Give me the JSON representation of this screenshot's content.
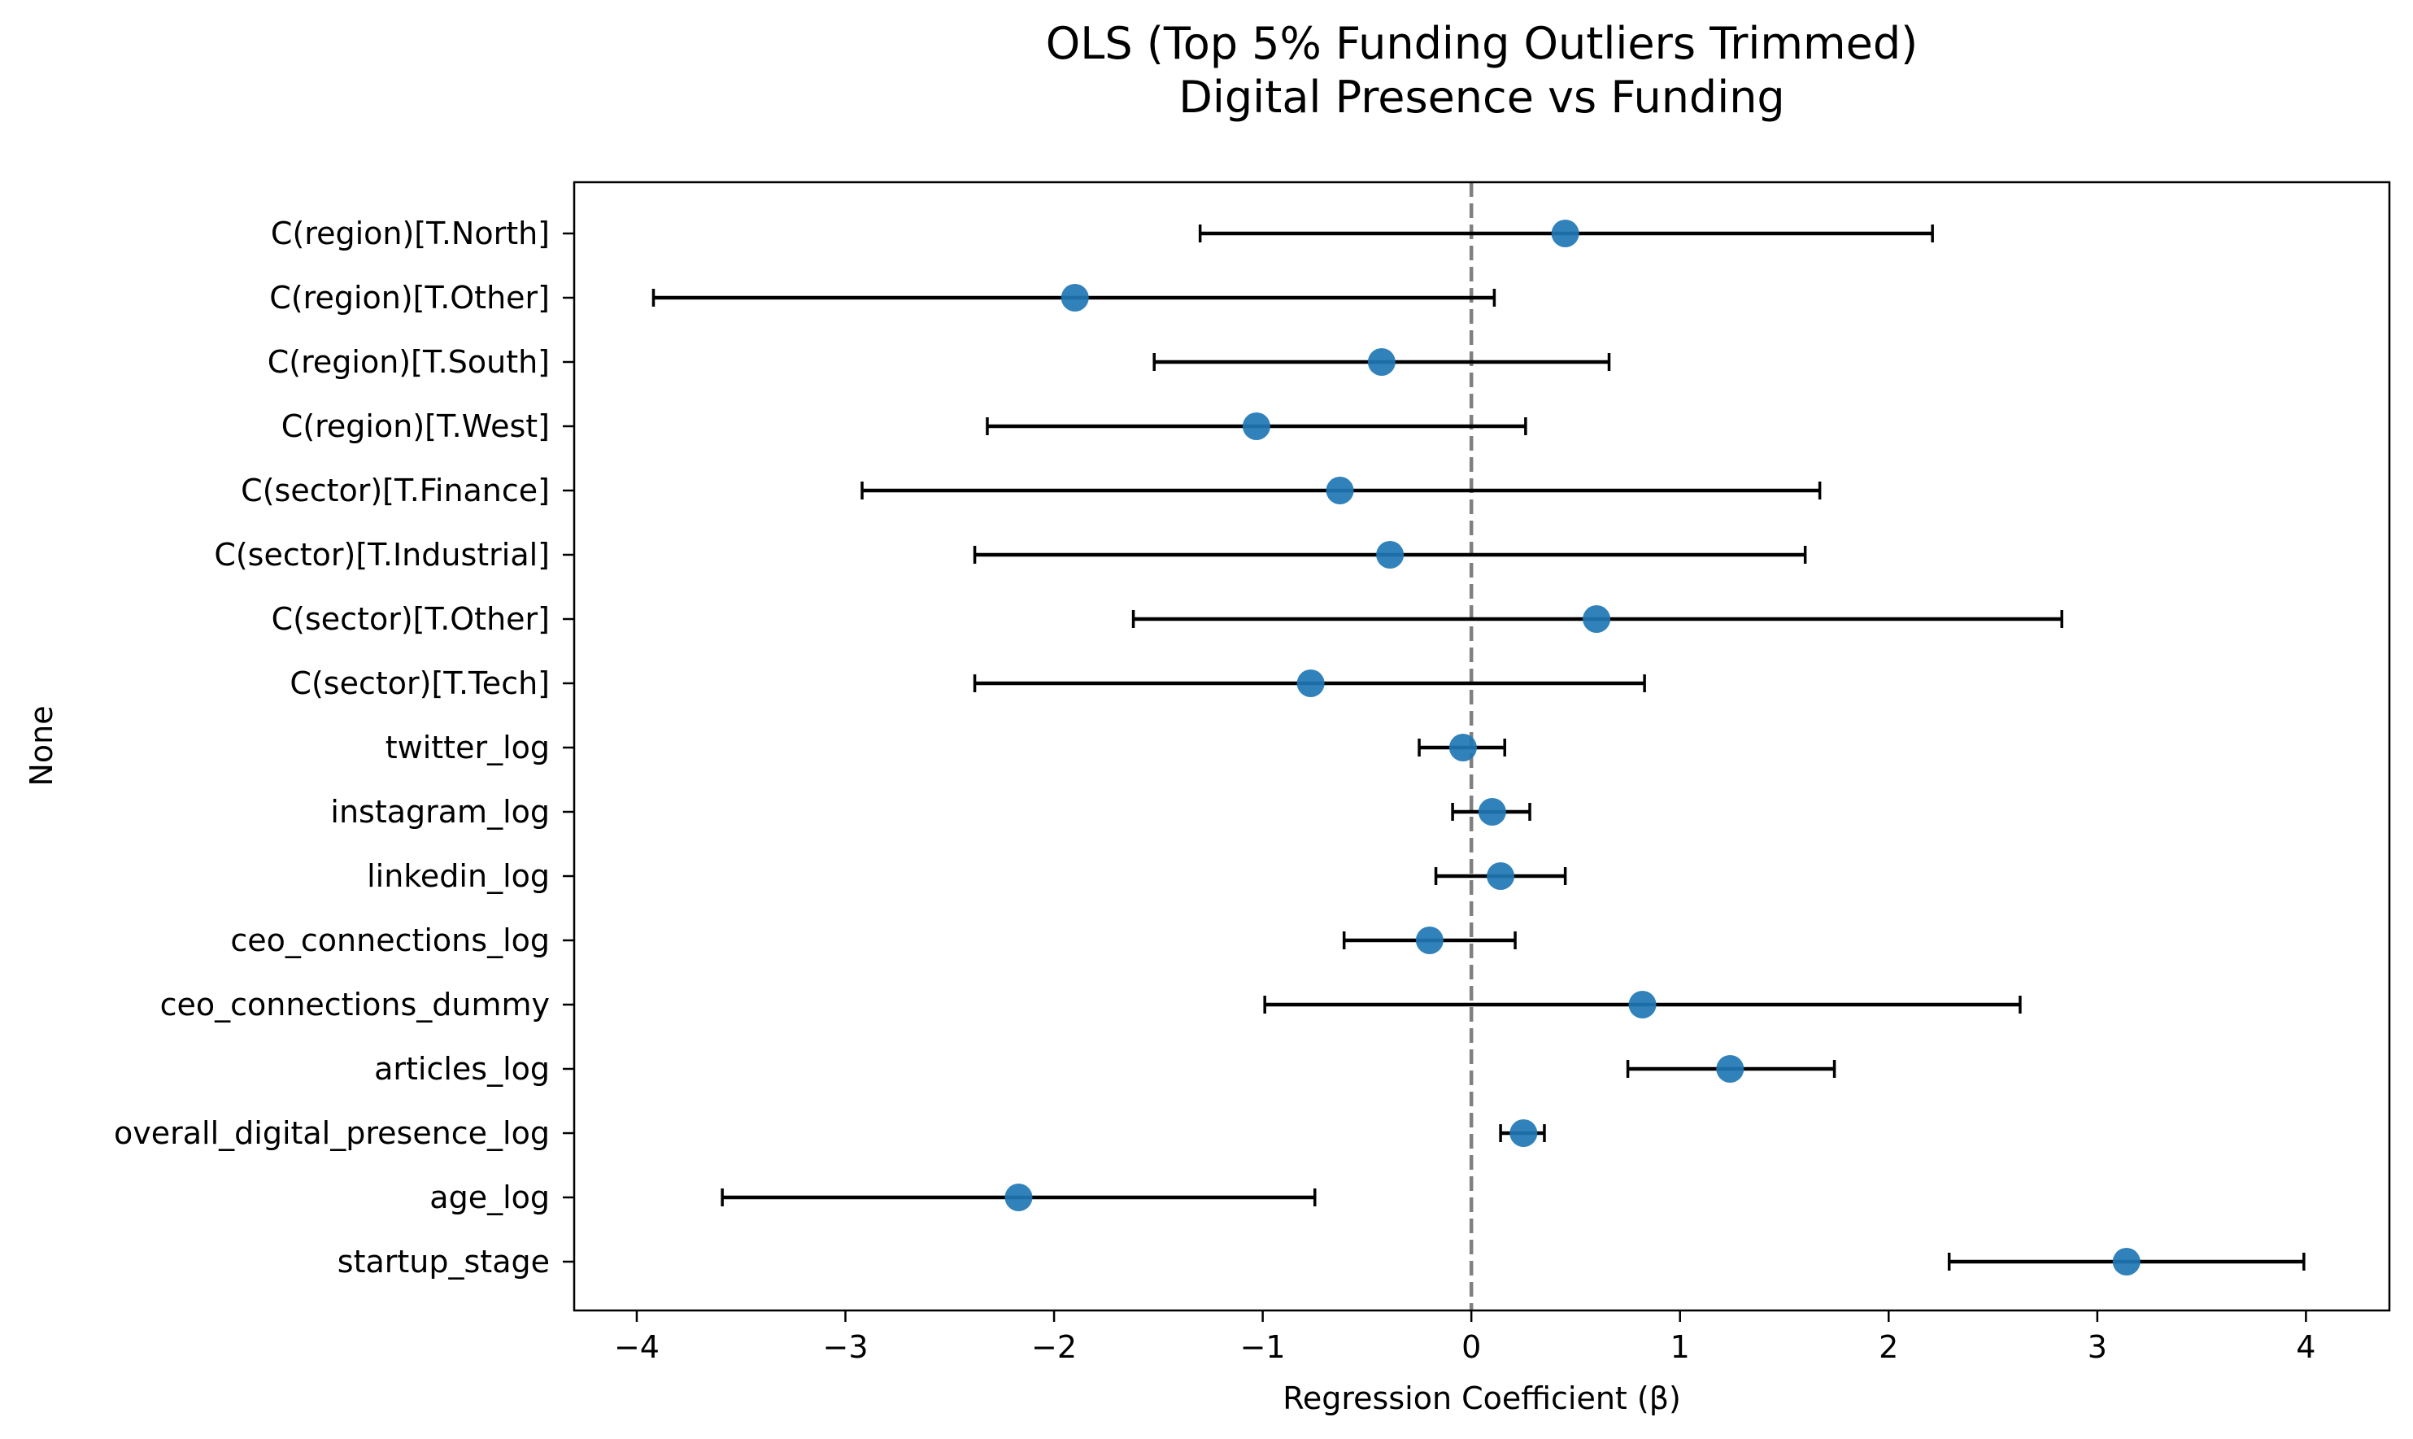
{
  "chart_data": {
    "type": "scatter",
    "title_lines": [
      "OLS (Top 5% Funding Outliers Trimmed)",
      "Digital Presence vs Funding"
    ],
    "xlabel": "Regression Coefficient (β)",
    "ylabel": "None",
    "xlim": [
      -4.3,
      4.4
    ],
    "xticks": [
      {
        "value": -4,
        "label": "−4"
      },
      {
        "value": -3,
        "label": "−3"
      },
      {
        "value": -2,
        "label": "−2"
      },
      {
        "value": -1,
        "label": "−1"
      },
      {
        "value": 0,
        "label": "0"
      },
      {
        "value": 1,
        "label": "1"
      },
      {
        "value": 2,
        "label": "2"
      },
      {
        "value": 3,
        "label": "3"
      },
      {
        "value": 4,
        "label": "4"
      }
    ],
    "grid": false,
    "reference_line": {
      "x": 0,
      "style": "dashed",
      "color": "#808080"
    },
    "point_color": "#1f77b4",
    "errorbar_color": "#000000",
    "points": [
      {
        "label": "C(region)[T.North]",
        "coef": 0.45,
        "ci_low": -1.3,
        "ci_high": 2.21
      },
      {
        "label": "C(region)[T.Other]",
        "coef": -1.9,
        "ci_low": -3.92,
        "ci_high": 0.11
      },
      {
        "label": "C(region)[T.South]",
        "coef": -0.43,
        "ci_low": -1.52,
        "ci_high": 0.66
      },
      {
        "label": "C(region)[T.West]",
        "coef": -1.03,
        "ci_low": -2.32,
        "ci_high": 0.26
      },
      {
        "label": "C(sector)[T.Finance]",
        "coef": -0.63,
        "ci_low": -2.92,
        "ci_high": 1.67
      },
      {
        "label": "C(sector)[T.Industrial]",
        "coef": -0.39,
        "ci_low": -2.38,
        "ci_high": 1.6
      },
      {
        "label": "C(sector)[T.Other]",
        "coef": 0.6,
        "ci_low": -1.62,
        "ci_high": 2.83
      },
      {
        "label": "C(sector)[T.Tech]",
        "coef": -0.77,
        "ci_low": -2.38,
        "ci_high": 0.83
      },
      {
        "label": "twitter_log",
        "coef": -0.04,
        "ci_low": -0.25,
        "ci_high": 0.16
      },
      {
        "label": "instagram_log",
        "coef": 0.1,
        "ci_low": -0.09,
        "ci_high": 0.28
      },
      {
        "label": "linkedin_log",
        "coef": 0.14,
        "ci_low": -0.17,
        "ci_high": 0.45
      },
      {
        "label": "ceo_connections_log",
        "coef": -0.2,
        "ci_low": -0.61,
        "ci_high": 0.21
      },
      {
        "label": "ceo_connections_dummy",
        "coef": 0.82,
        "ci_low": -0.99,
        "ci_high": 2.63
      },
      {
        "label": "articles_log",
        "coef": 1.24,
        "ci_low": 0.75,
        "ci_high": 1.74
      },
      {
        "label": "overall_digital_presence_log",
        "coef": 0.25,
        "ci_low": 0.14,
        "ci_high": 0.35
      },
      {
        "label": "age_log",
        "coef": -2.17,
        "ci_low": -3.59,
        "ci_high": -0.75
      },
      {
        "label": "startup_stage",
        "coef": 3.14,
        "ci_low": 2.29,
        "ci_high": 3.99
      }
    ]
  }
}
